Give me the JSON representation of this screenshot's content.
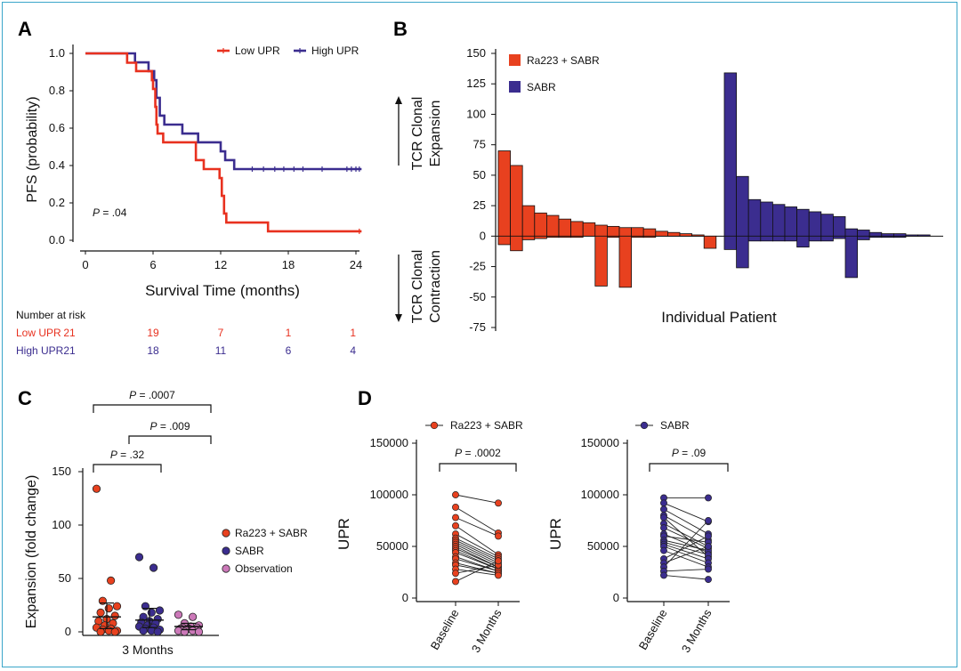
{
  "colors": {
    "low": "#e8311f",
    "high": "#3b2d8f",
    "ra": "#e8411f",
    "sabr": "#3b2d8f",
    "obs": "#cc79b9",
    "frame": "#3aa6c9"
  },
  "chart_data": [
    {
      "panel": "A",
      "type": "line",
      "ylabel": "PFS (probability)",
      "xlabel": "Survival Time (months)",
      "xlim": [
        0,
        24
      ],
      "ylim": [
        0,
        1
      ],
      "xticks": [
        "0",
        "6",
        "12",
        "18",
        "24"
      ],
      "yticks": [
        "0.0",
        "0.2",
        "0.4",
        "0.6",
        "0.8",
        "1.0"
      ],
      "annotation_p": "P",
      "annotation_rest": " = .04",
      "legend_position": "top-right",
      "series": [
        {
          "name": "Low UPR",
          "steps": [
            [
              0,
              1.0
            ],
            [
              3.7,
              0.95
            ],
            [
              4.5,
              0.905
            ],
            [
              5.9,
              0.857
            ],
            [
              6.0,
              0.81
            ],
            [
              6.2,
              0.714
            ],
            [
              6.3,
              0.619
            ],
            [
              6.4,
              0.571
            ],
            [
              6.9,
              0.524
            ],
            [
              9.8,
              0.429
            ],
            [
              10.5,
              0.381
            ],
            [
              11.9,
              0.333
            ],
            [
              12.1,
              0.238
            ],
            [
              12.3,
              0.143
            ],
            [
              12.5,
              0.095
            ],
            [
              16.2,
              0.048
            ],
            [
              24.5,
              0.048
            ]
          ],
          "censor": [
            24.3
          ]
        },
        {
          "name": "High UPR",
          "steps": [
            [
              0,
              1.0
            ],
            [
              4.4,
              0.952
            ],
            [
              5.6,
              0.905
            ],
            [
              6.1,
              0.857
            ],
            [
              6.3,
              0.762
            ],
            [
              6.6,
              0.667
            ],
            [
              7.0,
              0.619
            ],
            [
              8.6,
              0.571
            ],
            [
              10.0,
              0.524
            ],
            [
              12.0,
              0.476
            ],
            [
              12.4,
              0.429
            ],
            [
              13.2,
              0.381
            ],
            [
              24.5,
              0.381
            ]
          ],
          "censor": [
            14.8,
            15.8,
            16.8,
            17.6,
            18.5,
            19.3,
            21.0,
            23.2,
            23.6,
            24.0,
            24.3
          ]
        }
      ],
      "risk_table": {
        "title": "Number at risk",
        "rows": [
          {
            "name": "Low UPR",
            "values": [
              "21",
              "19",
              "7",
              "1",
              "1"
            ]
          },
          {
            "name": "High UPR",
            "values": [
              "21",
              "18",
              "11",
              "6",
              "4"
            ]
          }
        ]
      }
    },
    {
      "panel": "B",
      "type": "bar",
      "xlabel": "Individual Patient",
      "ylim": [
        -75,
        150
      ],
      "yticks": [
        "-75",
        "-50",
        "-25",
        "0",
        "25",
        "50",
        "75",
        "100",
        "125",
        "150"
      ],
      "arrow_up_label": [
        "TCR Clonal",
        "Expansion"
      ],
      "arrow_down_label": [
        "TCR Clonal",
        "Contraction"
      ],
      "legend_position": "top-left",
      "series": [
        {
          "name": "Ra223 + SABR",
          "expansion": [
            70,
            58,
            25,
            19,
            17,
            14,
            12,
            11,
            9,
            8,
            7,
            7,
            6,
            4,
            3,
            2,
            1,
            0
          ],
          "contraction": [
            -7,
            -12,
            -3,
            -2,
            -1,
            -1,
            -1,
            0,
            -41,
            -1,
            -42,
            -1,
            -1,
            0,
            0,
            0,
            0,
            -10
          ]
        },
        {
          "name": "SABR",
          "expansion": [
            134,
            49,
            30,
            28,
            26,
            24,
            22,
            20,
            18,
            16,
            6,
            5,
            3,
            2,
            2,
            1,
            1,
            0
          ],
          "contraction": [
            -11,
            -26,
            -4,
            -4,
            -4,
            -4,
            -9,
            -4,
            -4,
            -2,
            -34,
            -3,
            -1,
            -1,
            -1,
            0,
            0,
            0
          ]
        }
      ]
    },
    {
      "panel": "C",
      "type": "scatter",
      "ylabel": "Expansion (fold change)",
      "xlabel": "3 Months",
      "ylim": [
        0,
        150
      ],
      "yticks": [
        "0",
        "50",
        "100",
        "150"
      ],
      "brackets": [
        {
          "from": 0,
          "to": 2,
          "p": "P",
          "text": " = .0007"
        },
        {
          "from": 1,
          "to": 2,
          "p": "P",
          "text": " = .009"
        },
        {
          "from": 0,
          "to": 1,
          "p": "P",
          "text": " = .32"
        }
      ],
      "legend_position": "right",
      "series": [
        {
          "name": "Ra223 + SABR",
          "mean": 14,
          "sd_low": 3,
          "sd_high": 27,
          "values": [
            134,
            48,
            29,
            24,
            22,
            18,
            15,
            12,
            10,
            8,
            6,
            4,
            3,
            2,
            1,
            1,
            0,
            0
          ]
        },
        {
          "name": "SABR",
          "mean": 11,
          "sd_low": 4,
          "sd_high": 22,
          "values": [
            70,
            60,
            24,
            20,
            18,
            14,
            12,
            10,
            9,
            8,
            6,
            5,
            4,
            3,
            2,
            1,
            1,
            0
          ]
        },
        {
          "name": "Observation",
          "mean": 5,
          "sd_low": 2,
          "sd_high": 8,
          "values": [
            16,
            14,
            8,
            6,
            5,
            4,
            4,
            3,
            3,
            2,
            2,
            1,
            1,
            0,
            0
          ]
        }
      ]
    },
    {
      "panel": "D",
      "type": "line",
      "ylabel": "UPR",
      "ylim": [
        0,
        150000
      ],
      "yticks": [
        "0",
        "50000",
        "100000",
        "150000"
      ],
      "categories": [
        "Baseline",
        "3 Months"
      ],
      "subplots": [
        {
          "legend": "Ra223 + SABR",
          "p": "P",
          "text": " = .0002",
          "pairs": [
            [
              100000,
              92000
            ],
            [
              88000,
              63000
            ],
            [
              78000,
              60000
            ],
            [
              70000,
              42000
            ],
            [
              62000,
              40000
            ],
            [
              58000,
              38000
            ],
            [
              56000,
              36000
            ],
            [
              54000,
              34000
            ],
            [
              52000,
              32000
            ],
            [
              50000,
              30000
            ],
            [
              48000,
              30000
            ],
            [
              46000,
              28000
            ],
            [
              44000,
              28000
            ],
            [
              40000,
              26000
            ],
            [
              38000,
              26000
            ],
            [
              34000,
              24000
            ],
            [
              32000,
              24000
            ],
            [
              28000,
              22000
            ],
            [
              24000,
              32000
            ],
            [
              16000,
              36000
            ]
          ]
        },
        {
          "legend": "SABR",
          "p": "P",
          "text": " = .09",
          "pairs": [
            [
              97000,
              97000
            ],
            [
              92000,
              74000
            ],
            [
              86000,
              62000
            ],
            [
              80000,
              56000
            ],
            [
              78000,
              40000
            ],
            [
              72000,
              50000
            ],
            [
              68000,
              48000
            ],
            [
              62000,
              44000
            ],
            [
              60000,
              54000
            ],
            [
              56000,
              46000
            ],
            [
              54000,
              42000
            ],
            [
              52000,
              38000
            ],
            [
              50000,
              34000
            ],
            [
              46000,
              30000
            ],
            [
              38000,
              60000
            ],
            [
              34000,
              50000
            ],
            [
              30000,
              75000
            ],
            [
              26000,
              28000
            ],
            [
              22000,
              18000
            ]
          ]
        }
      ]
    }
  ]
}
